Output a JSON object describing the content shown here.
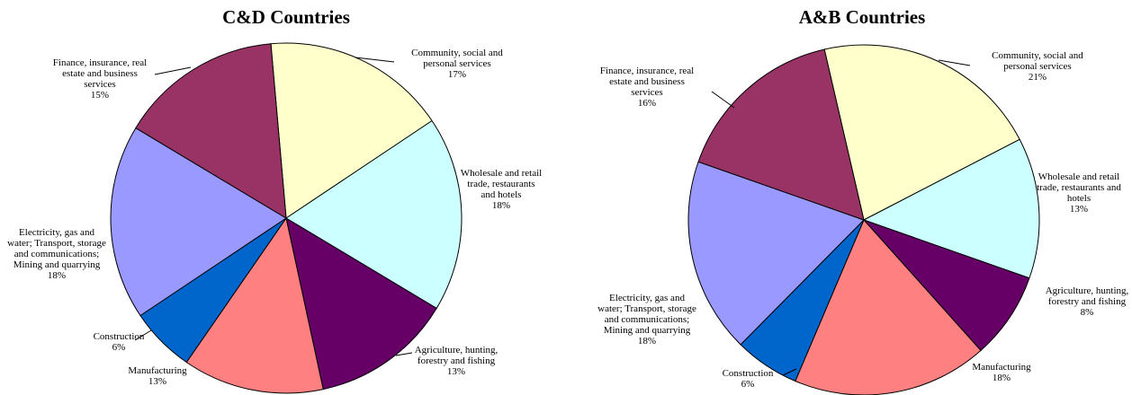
{
  "chart_data": [
    {
      "type": "pie",
      "title": "C&D Countries",
      "start_angle_deg": 265,
      "slices": [
        {
          "label_lines": [
            "Community, social and",
            "personal services"
          ],
          "value_label": "17%",
          "value": 17,
          "color": "#FFFFCC"
        },
        {
          "label_lines": [
            "Wholesale and retail",
            "trade, restaurants",
            "and hotels"
          ],
          "value_label": "18%",
          "value": 18,
          "color": "#CCFFFF"
        },
        {
          "label_lines": [
            "Agriculture, hunting,",
            "forestry and fishing"
          ],
          "value_label": "13%",
          "value": 13,
          "color": "#660066"
        },
        {
          "label_lines": [
            "Manufacturing"
          ],
          "value_label": "13%",
          "value": 13,
          "color": "#FF8080"
        },
        {
          "label_lines": [
            "Construction"
          ],
          "value_label": "6%",
          "value": 6,
          "color": "#0066CC"
        },
        {
          "label_lines": [
            "Electricity, gas and",
            "water; Transport, storage",
            "and communications;",
            "Mining and quarrying"
          ],
          "value_label": "18%",
          "value": 18,
          "color": "#9999FF"
        },
        {
          "label_lines": [
            "Finance, insurance, real",
            "estate and business",
            "services"
          ],
          "value_label": "15%",
          "value": 15,
          "color": "#993366"
        }
      ]
    },
    {
      "type": "pie",
      "title": "A&B Countries",
      "start_angle_deg": 257,
      "slices": [
        {
          "label_lines": [
            "Community, social and",
            "personal services"
          ],
          "value_label": "21%",
          "value": 21,
          "color": "#FFFFCC"
        },
        {
          "label_lines": [
            "Wholesale and retail",
            "trade, restaurants and",
            "hotels"
          ],
          "value_label": "13%",
          "value": 13,
          "color": "#CCFFFF"
        },
        {
          "label_lines": [
            "Agriculture, hunting,",
            "forestry and fishing"
          ],
          "value_label": "8%",
          "value": 8,
          "color": "#660066"
        },
        {
          "label_lines": [
            "Manufacturing"
          ],
          "value_label": "18%",
          "value": 18,
          "color": "#FF8080"
        },
        {
          "label_lines": [
            "Construction"
          ],
          "value_label": "6%",
          "value": 6,
          "color": "#0066CC"
        },
        {
          "label_lines": [
            "Electricity, gas and",
            "water; Transport, storage",
            "and communications;",
            "Mining and quarrying"
          ],
          "value_label": "18%",
          "value": 18,
          "color": "#9999FF"
        },
        {
          "label_lines": [
            "Finance, insurance, real",
            "estate and business",
            "services"
          ],
          "value_label": "16%",
          "value": 16,
          "color": "#993366"
        }
      ]
    }
  ]
}
